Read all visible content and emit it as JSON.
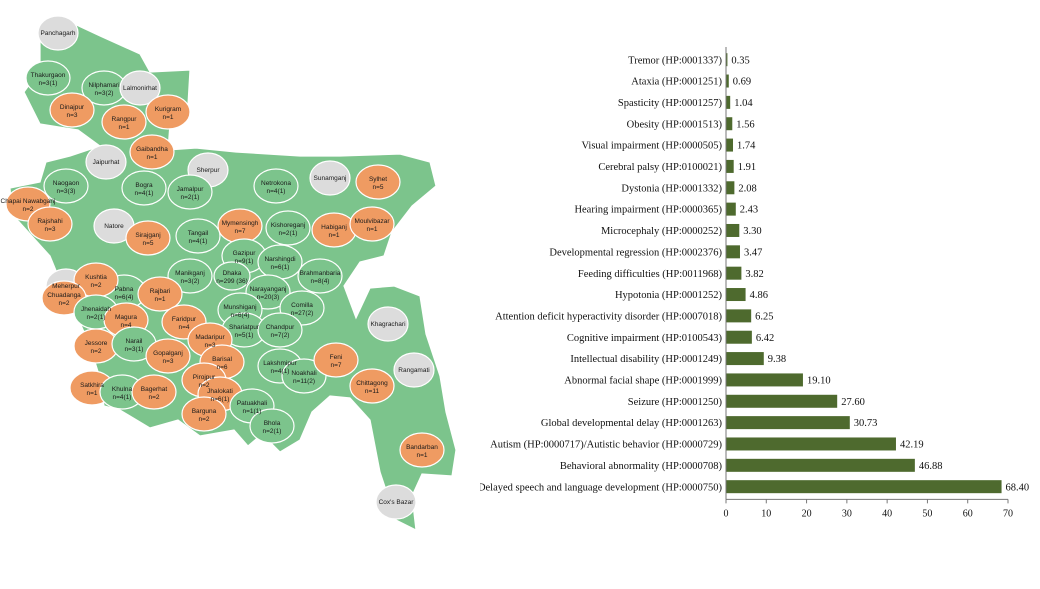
{
  "map": {
    "colors": {
      "ocean": "#ffffff",
      "none": "#dcdcdc",
      "low": "#7cc48c",
      "high": "#ef9b62",
      "border": "#ffffff"
    },
    "districts": [
      {
        "name": "Panchagarh",
        "count": "",
        "class": "none"
      },
      {
        "name": "Thakurgaon",
        "count": "n=3(1)",
        "class": "low"
      },
      {
        "name": "Nilphamari",
        "count": "n=3(2)",
        "class": "low"
      },
      {
        "name": "Lalmonirhat",
        "count": "",
        "class": "none"
      },
      {
        "name": "Dinajpur",
        "count": "n=3",
        "class": "high"
      },
      {
        "name": "Rangpur",
        "count": "n=1",
        "class": "high"
      },
      {
        "name": "Kurigram",
        "count": "n=1",
        "class": "high"
      },
      {
        "name": "Gaibandha",
        "count": "n=1",
        "class": "high"
      },
      {
        "name": "Jaipurhat",
        "count": "",
        "class": "none"
      },
      {
        "name": "Sherpur",
        "count": "",
        "class": "none"
      },
      {
        "name": "Sunamganj",
        "count": "",
        "class": "none"
      },
      {
        "name": "Naogaon",
        "count": "n=3(3)",
        "class": "low"
      },
      {
        "name": "Bogra",
        "count": "n=4(1)",
        "class": "low"
      },
      {
        "name": "Jamalpur",
        "count": "n=2(1)",
        "class": "low"
      },
      {
        "name": "Netrokona",
        "count": "n=4(1)",
        "class": "low"
      },
      {
        "name": "Sylhet",
        "count": "n=5",
        "class": "high"
      },
      {
        "name": "Chapai Nawabganj",
        "count": "n=2",
        "class": "high"
      },
      {
        "name": "Mymensingh",
        "count": "n=7",
        "class": "high"
      },
      {
        "name": "Rajshahi",
        "count": "n=3",
        "class": "high"
      },
      {
        "name": "Natore",
        "count": "",
        "class": "none"
      },
      {
        "name": "Sirajganj",
        "count": "n=5",
        "class": "high"
      },
      {
        "name": "Tangail",
        "count": "n=4(1)",
        "class": "low"
      },
      {
        "name": "Kishoreganj",
        "count": "n=2(1)",
        "class": "low"
      },
      {
        "name": "Habiganj",
        "count": "n=1",
        "class": "high"
      },
      {
        "name": "Moulvibazar",
        "count": "n=1",
        "class": "high"
      },
      {
        "name": "Gazipur",
        "count": "n=9(1)",
        "class": "low"
      },
      {
        "name": "Narshingdi",
        "count": "n=6(1)",
        "class": "low"
      },
      {
        "name": "Pabna",
        "count": "n=6(4)",
        "class": "low"
      },
      {
        "name": "Manikganj",
        "count": "n=3(2)",
        "class": "low"
      },
      {
        "name": "Dhaka",
        "count": "n=299 (36)",
        "class": "low"
      },
      {
        "name": "Brahmanbaria",
        "count": "n=8(4)",
        "class": "low"
      },
      {
        "name": "Narayanganj",
        "count": "n=20(3)",
        "class": "low"
      },
      {
        "name": "Meherpur",
        "count": "",
        "class": "none"
      },
      {
        "name": "Kushtia",
        "count": "n=2",
        "class": "high"
      },
      {
        "name": "Rajbari",
        "count": "n=1",
        "class": "high"
      },
      {
        "name": "Chuadanga",
        "count": "n=2",
        "class": "high"
      },
      {
        "name": "Jhenaidah",
        "count": "n=2(1)",
        "class": "low"
      },
      {
        "name": "Munshiganj",
        "count": "n=6(4)",
        "class": "low"
      },
      {
        "name": "Comilla",
        "count": "n=27(2)",
        "class": "low"
      },
      {
        "name": "Magura",
        "count": "n=4",
        "class": "high"
      },
      {
        "name": "Faridpur",
        "count": "n=4",
        "class": "high"
      },
      {
        "name": "Shariatpur",
        "count": "n=5(1)",
        "class": "low"
      },
      {
        "name": "Chandpur",
        "count": "n=7(2)",
        "class": "low"
      },
      {
        "name": "Jessore",
        "count": "n=2",
        "class": "high"
      },
      {
        "name": "Narail",
        "count": "n=3(1)",
        "class": "low"
      },
      {
        "name": "Madaripur",
        "count": "n=3",
        "class": "high"
      },
      {
        "name": "Gopalganj",
        "count": "n=3",
        "class": "high"
      },
      {
        "name": "Barisal",
        "count": "n=6",
        "class": "high"
      },
      {
        "name": "Lakshmipur",
        "count": "n=4(1)",
        "class": "low"
      },
      {
        "name": "Noakhali",
        "count": "n=11(2)",
        "class": "low"
      },
      {
        "name": "Feni",
        "count": "n=7",
        "class": "high"
      },
      {
        "name": "Khagrachari",
        "count": "",
        "class": "none"
      },
      {
        "name": "Rangamati",
        "count": "",
        "class": "none"
      },
      {
        "name": "Satkhira",
        "count": "n=1",
        "class": "high"
      },
      {
        "name": "Khulna",
        "count": "n=4(1)",
        "class": "low"
      },
      {
        "name": "Bagerhat",
        "count": "n=2",
        "class": "high"
      },
      {
        "name": "Pirojpur",
        "count": "n=2",
        "class": "high"
      },
      {
        "name": "Jhalokati",
        "count": "n=6(1)",
        "class": "high"
      },
      {
        "name": "Patuakhali",
        "count": "n=1(1)",
        "class": "low"
      },
      {
        "name": "Barguna",
        "count": "n=2",
        "class": "high"
      },
      {
        "name": "Bhola",
        "count": "n=2(1)",
        "class": "low"
      },
      {
        "name": "Chittagong",
        "count": "n=11",
        "class": "high"
      },
      {
        "name": "Bandarban",
        "count": "n=1",
        "class": "high"
      },
      {
        "name": "Cox's Bazar",
        "count": "",
        "class": "none"
      }
    ]
  },
  "chart_data": {
    "type": "bar",
    "orientation": "horizontal",
    "categories": [
      "Tremor (HP:0001337)",
      "Ataxia (HP:0001251)",
      "Spasticity (HP:0001257)",
      "Obesity (HP:0001513)",
      "Visual impairment (HP:0000505)",
      "Cerebral palsy (HP:0100021)",
      "Dystonia (HP:0001332)",
      "Hearing impairment (HP:0000365)",
      "Microcephaly (HP:0000252)",
      "Developmental regression (HP:0002376)",
      "Feeding difficulties (HP:0011968)",
      "Hypotonia (HP:0001252)",
      "Attention deficit hyperactivity disorder (HP:0007018)",
      "Cognitive impairment (HP:0100543)",
      "Intellectual disability (HP:0001249)",
      "Abnormal facial shape (HP:0001999)",
      "Seizure (HP:0001250)",
      "Global developmental delay (HP:0001263)",
      "Autism (HP:0000717)/Autistic behavior (HP:0000729)",
      "Behavioral abnormality (HP:0000708)",
      "Delayed speech and language development (HP:0000750)"
    ],
    "values": [
      0.35,
      0.69,
      1.04,
      1.56,
      1.74,
      1.91,
      2.08,
      2.43,
      3.3,
      3.47,
      3.82,
      4.86,
      6.25,
      6.42,
      9.38,
      19.1,
      27.6,
      30.73,
      42.19,
      46.88,
      68.4
    ],
    "value_labels": [
      "0.35",
      "0.69",
      "1.04",
      "1.56",
      "1.74",
      "1.91",
      "2.08",
      "2.43",
      "3.30",
      "3.47",
      "3.82",
      "4.86",
      "6.25",
      "6.42",
      "9.38",
      "19.10",
      "27.60",
      "30.73",
      "42.19",
      "46.88",
      "68.40"
    ],
    "xticks": [
      "0",
      "10",
      "20",
      "30",
      "40",
      "50",
      "60",
      "70"
    ],
    "xlim": [
      0,
      70
    ],
    "bar_color": "#4e6a2e",
    "grid": false,
    "title": "",
    "xlabel": "",
    "ylabel": ""
  }
}
